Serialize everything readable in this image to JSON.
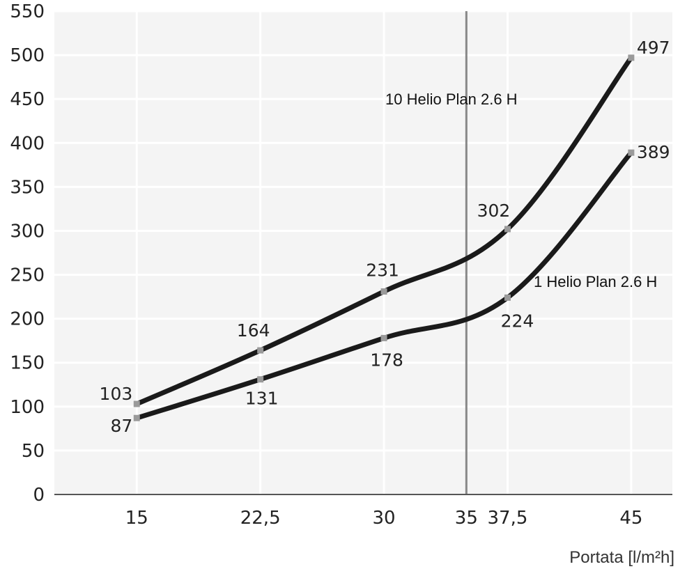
{
  "chart_data": {
    "type": "line",
    "title": "",
    "xlabel": "Portata [l/m²h]",
    "ylabel": "",
    "x_ticks": [
      "15",
      "22,5",
      "30",
      "35",
      "37,5",
      "45"
    ],
    "x_tick_values": [
      15,
      22.5,
      30,
      35,
      37.5,
      45
    ],
    "y_ticks": [
      "0",
      "50",
      "100",
      "150",
      "200",
      "250",
      "300",
      "350",
      "400",
      "450",
      "500",
      "550"
    ],
    "ylim": [
      0,
      550
    ],
    "grid": true,
    "reference_line": {
      "x": 35,
      "color": "#888888"
    },
    "series": [
      {
        "name": "10 Helio Plan 2.6 H",
        "x": [
          15,
          22.5,
          30,
          37.5,
          45
        ],
        "values": [
          103,
          164,
          231,
          302,
          497
        ],
        "labels": [
          "103",
          "164",
          "231",
          "302",
          "497"
        ],
        "color": "#1a1a1a"
      },
      {
        "name": "1 Helio Plan 2.6 H",
        "x": [
          15,
          22.5,
          30,
          37.5,
          45
        ],
        "values": [
          87,
          131,
          178,
          224,
          389
        ],
        "labels": [
          "87",
          "131",
          "178",
          "224",
          "389"
        ],
        "color": "#1a1a1a"
      }
    ]
  }
}
